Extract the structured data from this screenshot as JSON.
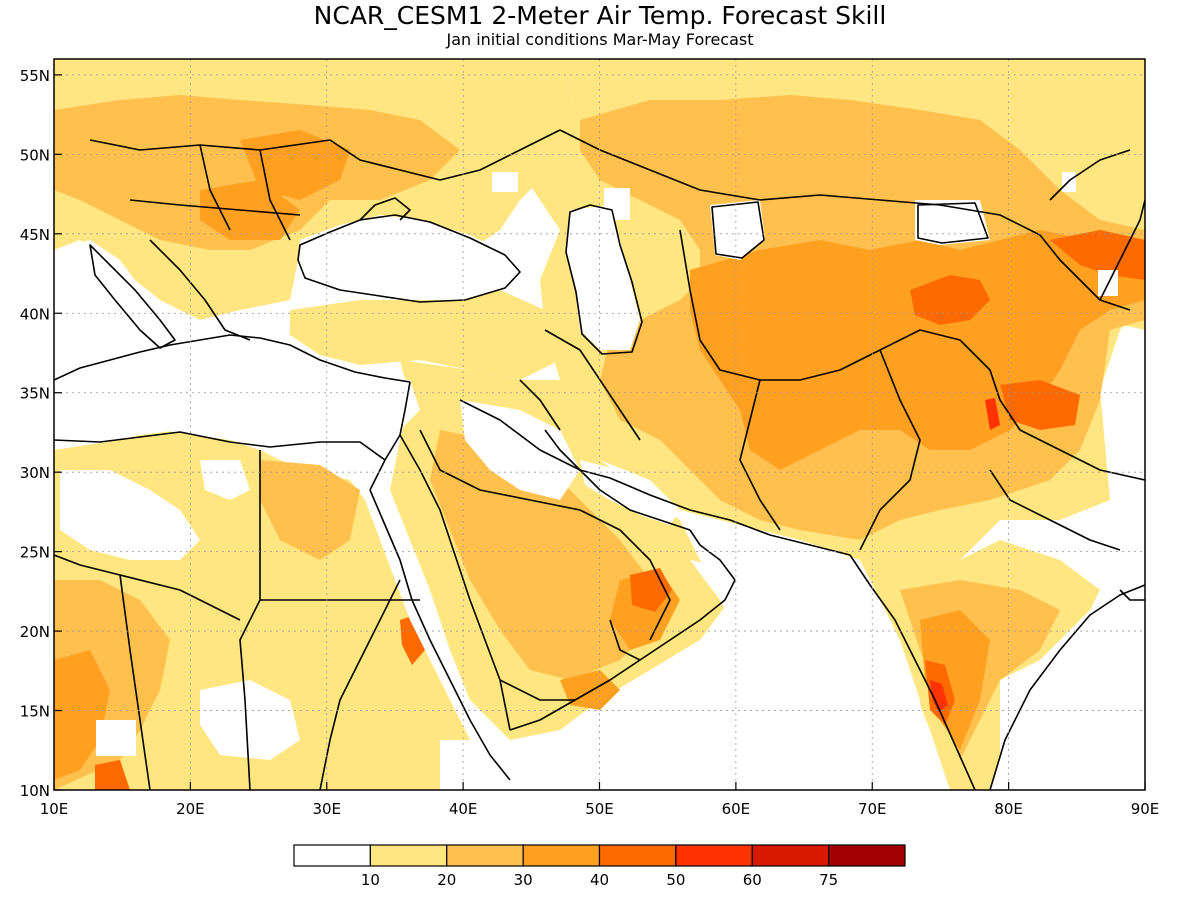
{
  "title": "NCAR_CESM1 2-Meter Air Temp. Forecast Skill",
  "subtitle": "Jan initial conditions  Mar-May Forecast",
  "map": {
    "lon_range": [
      10,
      90
    ],
    "lat_range": [
      10,
      56
    ],
    "lon_ticks": [
      "10E",
      "20E",
      "30E",
      "40E",
      "50E",
      "60E",
      "70E",
      "80E",
      "90E"
    ],
    "lat_ticks": [
      "10N",
      "15N",
      "20N",
      "25N",
      "30N",
      "35N",
      "40N",
      "45N",
      "50N",
      "55N"
    ],
    "grid": true
  },
  "legend": {
    "placement": "bottom-center",
    "colors": [
      "#ffffff",
      "#ffe680",
      "#ffc04d",
      "#ffa020",
      "#ff6a00",
      "#ff3300",
      "#d91a00",
      "#a00000"
    ],
    "labels": [
      "10",
      "20",
      "30",
      "40",
      "50",
      "60",
      "75"
    ]
  },
  "colors": {
    "c10": "#ffe680",
    "c20": "#ffc04d",
    "c30": "#ffa020",
    "c40": "#ff6a00",
    "c50": "#ff3300"
  }
}
